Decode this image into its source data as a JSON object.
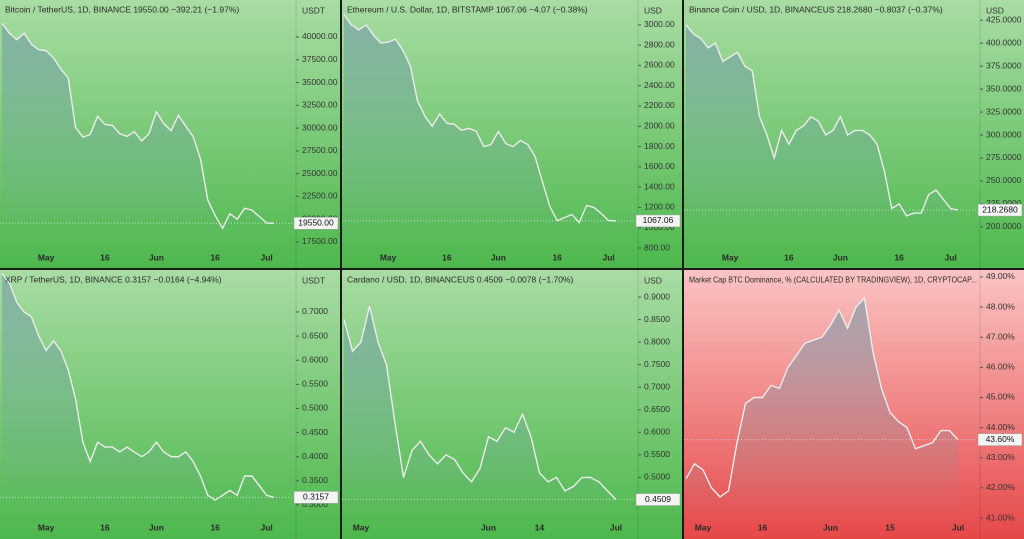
{
  "chart_data": [
    {
      "type": "area",
      "title": "Bitcoin / TetherUS, 1D, BINANCE  19550.00  −392.21 (−1.97%)",
      "currency": "USDT",
      "last_label": "19550.00",
      "color": "#ececec",
      "background": [
        "#a8dca3",
        "#4db84d"
      ],
      "categories": [
        null,
        null,
        null,
        null,
        null,
        null,
        "May",
        null,
        null,
        null,
        null,
        null,
        null,
        null,
        "16",
        null,
        null,
        null,
        null,
        null,
        null,
        "Jun",
        null,
        null,
        null,
        null,
        null,
        null,
        null,
        "16",
        null,
        null,
        null,
        null,
        null,
        null,
        "Jul",
        null
      ],
      "values": [
        41500,
        40400,
        39700,
        40400,
        39200,
        38600,
        38500,
        37700,
        36500,
        35500,
        30100,
        29000,
        29300,
        31300,
        30400,
        30300,
        29400,
        29100,
        29600,
        28600,
        29400,
        31800,
        30500,
        29700,
        31400,
        30200,
        29100,
        26600,
        22100,
        20400,
        19000,
        20600,
        20000,
        21200,
        21000,
        20300,
        19600,
        19550
      ],
      "ylim": [
        16840,
        44060
      ],
      "yticks": [
        {
          "value": 17500,
          "label": "17500.00"
        },
        {
          "value": 20000,
          "label": "20000.00"
        },
        {
          "value": 22500,
          "label": "22500.00"
        },
        {
          "value": 25000,
          "label": "25000.00"
        },
        {
          "value": 27500,
          "label": "27500.00"
        },
        {
          "value": 30000,
          "label": "30000.00"
        },
        {
          "value": 32500,
          "label": "32500.00"
        },
        {
          "value": 35000,
          "label": "35000.00"
        },
        {
          "value": 37500,
          "label": "37500.00"
        },
        {
          "value": 40000,
          "label": "40000.00"
        }
      ]
    },
    {
      "type": "area",
      "title": "Ethereum / U.S. Dollar, 1D, BITSTAMP  1067.06  −4.07 (−0.38%)",
      "currency": "USD",
      "last_label": "1067.06",
      "color": "#ececec",
      "background": [
        "#a8dca3",
        "#4db84d"
      ],
      "categories": [
        null,
        null,
        null,
        null,
        null,
        null,
        "May",
        null,
        null,
        null,
        null,
        null,
        null,
        null,
        "16",
        null,
        null,
        null,
        null,
        null,
        null,
        "Jun",
        null,
        null,
        null,
        null,
        null,
        null,
        null,
        "16",
        null,
        null,
        null,
        null,
        null,
        null,
        "Jul",
        null
      ],
      "values": [
        3100,
        3000,
        2950,
        3000,
        2900,
        2820,
        2830,
        2860,
        2750,
        2600,
        2250,
        2100,
        2000,
        2120,
        2030,
        2020,
        1960,
        1980,
        1950,
        1800,
        1820,
        1950,
        1830,
        1800,
        1860,
        1820,
        1700,
        1450,
        1210,
        1070,
        1100,
        1130,
        1050,
        1220,
        1200,
        1140,
        1070,
        1067.06
      ],
      "ylim": [
        800,
        3245
      ],
      "yticks": [
        {
          "value": 800,
          "label": "800.00"
        },
        {
          "value": 1000,
          "label": "1000.00"
        },
        {
          "value": 1200,
          "label": "1200.00"
        },
        {
          "value": 1400,
          "label": "1400.00"
        },
        {
          "value": 1600,
          "label": "1600.00"
        },
        {
          "value": 1800,
          "label": "1800.00"
        },
        {
          "value": 2000,
          "label": "2000.00"
        },
        {
          "value": 2200,
          "label": "2200.00"
        },
        {
          "value": 2400,
          "label": "2400.00"
        },
        {
          "value": 2600,
          "label": "2600.00"
        },
        {
          "value": 2800,
          "label": "2800.00"
        },
        {
          "value": 3000,
          "label": "3000.00"
        }
      ]
    },
    {
      "type": "area",
      "title": "Binance Coin / USD, 1D, BINANCEUS  218.2680  −0.8037 (−0.37%)",
      "currency": "USD",
      "last_label": "218.2680",
      "color": "#ececec",
      "background": [
        "#a8dca3",
        "#4db84d"
      ],
      "categories": [
        null,
        null,
        null,
        null,
        null,
        null,
        "May",
        null,
        null,
        null,
        null,
        null,
        null,
        null,
        "16",
        null,
        null,
        null,
        null,
        null,
        null,
        "Jun",
        null,
        null,
        null,
        null,
        null,
        null,
        null,
        "16",
        null,
        null,
        null,
        null,
        null,
        null,
        "Jul",
        null
      ],
      "values": [
        420,
        410,
        405,
        395,
        400,
        380,
        385,
        390,
        375,
        370,
        320,
        300,
        275,
        305,
        290,
        305,
        310,
        320,
        315,
        300,
        305,
        320,
        300,
        305,
        305,
        300,
        290,
        260,
        220,
        225,
        212,
        215,
        215,
        235,
        240,
        230,
        220,
        218.268
      ],
      "ylim": [
        177,
        447
      ],
      "yticks": [
        {
          "value": 200,
          "label": "200.0000"
        },
        {
          "value": 225,
          "label": "225.0000"
        },
        {
          "value": 250,
          "label": "250.0000"
        },
        {
          "value": 275,
          "label": "275.0000"
        },
        {
          "value": 300,
          "label": "300.0000"
        },
        {
          "value": 325,
          "label": "325.0000"
        },
        {
          "value": 350,
          "label": "350.0000"
        },
        {
          "value": 375,
          "label": "375.0000"
        },
        {
          "value": 400,
          "label": "400.0000"
        },
        {
          "value": 425,
          "label": "425.0000"
        }
      ]
    },
    {
      "type": "area",
      "title": "XRP / TetherUS, 1D, BINANCE  0.3157  −0.0164 (−4.94%)",
      "currency": "USDT",
      "last_label": "0.3157",
      "color": "#ececec",
      "background": [
        "#a8dca3",
        "#4db84d"
      ],
      "categories": [
        null,
        null,
        null,
        null,
        null,
        null,
        "May",
        null,
        null,
        null,
        null,
        null,
        null,
        null,
        "16",
        null,
        null,
        null,
        null,
        null,
        null,
        "Jun",
        null,
        null,
        null,
        null,
        null,
        null,
        null,
        "16",
        null,
        null,
        null,
        null,
        null,
        null,
        "Jul",
        null
      ],
      "values": [
        0.78,
        0.76,
        0.72,
        0.7,
        0.69,
        0.65,
        0.62,
        0.64,
        0.62,
        0.58,
        0.52,
        0.43,
        0.39,
        0.43,
        0.42,
        0.42,
        0.41,
        0.42,
        0.41,
        0.4,
        0.41,
        0.43,
        0.41,
        0.4,
        0.4,
        0.41,
        0.39,
        0.36,
        0.32,
        0.31,
        0.32,
        0.33,
        0.32,
        0.36,
        0.36,
        0.34,
        0.32,
        0.3157
      ],
      "ylim": [
        0.273,
        0.787
      ],
      "yticks": [
        {
          "value": 0.3,
          "label": "0.3000"
        },
        {
          "value": 0.35,
          "label": "0.3500"
        },
        {
          "value": 0.4,
          "label": "0.4000"
        },
        {
          "value": 0.45,
          "label": "0.4500"
        },
        {
          "value": 0.5,
          "label": "0.5000"
        },
        {
          "value": 0.55,
          "label": "0.5500"
        },
        {
          "value": 0.6,
          "label": "0.6000"
        },
        {
          "value": 0.65,
          "label": "0.6500"
        },
        {
          "value": 0.7,
          "label": "0.7000"
        }
      ]
    },
    {
      "type": "area",
      "title": "Cardano / USD, 1D, BINANCEUS  0.4509  −0.0078 (−1.70%)",
      "currency": "USD",
      "last_label": "0.4509",
      "color": "#ececec",
      "background": [
        "#a8dca3",
        "#4db84d"
      ],
      "categories": [
        null,
        null,
        "May",
        null,
        null,
        null,
        null,
        null,
        null,
        null,
        null,
        null,
        null,
        null,
        null,
        null,
        null,
        "Jun",
        null,
        null,
        null,
        null,
        null,
        "14",
        null,
        null,
        null,
        null,
        null,
        null,
        null,
        null,
        "Jul"
      ],
      "values": [
        0.85,
        0.78,
        0.8,
        0.88,
        0.8,
        0.75,
        0.62,
        0.5,
        0.56,
        0.58,
        0.55,
        0.53,
        0.55,
        0.54,
        0.51,
        0.49,
        0.52,
        0.59,
        0.58,
        0.61,
        0.6,
        0.64,
        0.59,
        0.51,
        0.49,
        0.5,
        0.47,
        0.48,
        0.5,
        0.5,
        0.49,
        0.47,
        0.4509
      ],
      "ylim": [
        0.41,
        0.96
      ],
      "yticks": [
        {
          "value": 0.5,
          "label": "0.5000"
        },
        {
          "value": 0.55,
          "label": "0.5500"
        },
        {
          "value": 0.6,
          "label": "0.6000"
        },
        {
          "value": 0.65,
          "label": "0.6500"
        },
        {
          "value": 0.7,
          "label": "0.7000"
        },
        {
          "value": 0.75,
          "label": "0.7500"
        },
        {
          "value": 0.8,
          "label": "0.8000"
        },
        {
          "value": 0.85,
          "label": "0.8500"
        },
        {
          "value": 0.9,
          "label": "0.9000"
        }
      ]
    },
    {
      "type": "area",
      "title": "Market Cap BTC Dominance, % (CALCULATED BY TRADINGVIEW), 1D, CRYPTOCAP...",
      "last_label": "43.60%",
      "color": "#ececec",
      "background": [
        "#fbc4c4",
        "#e64848"
      ],
      "categories": [
        null,
        null,
        "May",
        null,
        null,
        null,
        null,
        null,
        null,
        "16",
        null,
        null,
        null,
        null,
        null,
        null,
        null,
        "Jun",
        null,
        null,
        null,
        null,
        null,
        null,
        "15",
        null,
        null,
        null,
        null,
        null,
        null,
        null,
        "Jul"
      ],
      "values": [
        42.3,
        42.8,
        42.6,
        42.0,
        41.7,
        41.9,
        43.5,
        44.8,
        45.0,
        45.0,
        45.4,
        45.3,
        46.0,
        46.4,
        46.8,
        46.9,
        47.0,
        47.4,
        47.9,
        47.3,
        48.0,
        48.3,
        46.5,
        45.3,
        44.5,
        44.2,
        44.0,
        43.3,
        43.4,
        43.5,
        43.9,
        43.9,
        43.6
      ],
      "ylim": [
        41,
        49.23
      ],
      "yticks": [
        {
          "value": 41,
          "label": "41.00%"
        },
        {
          "value": 42,
          "label": "42.00%"
        },
        {
          "value": 43,
          "label": "43.00%"
        },
        {
          "value": 44,
          "label": "44.00%"
        },
        {
          "value": 45,
          "label": "45.00%"
        },
        {
          "value": 46,
          "label": "46.00%"
        },
        {
          "value": 47,
          "label": "47.00%"
        },
        {
          "value": 48,
          "label": "48.00%"
        },
        {
          "value": 49,
          "label": "49.00%"
        }
      ]
    }
  ]
}
